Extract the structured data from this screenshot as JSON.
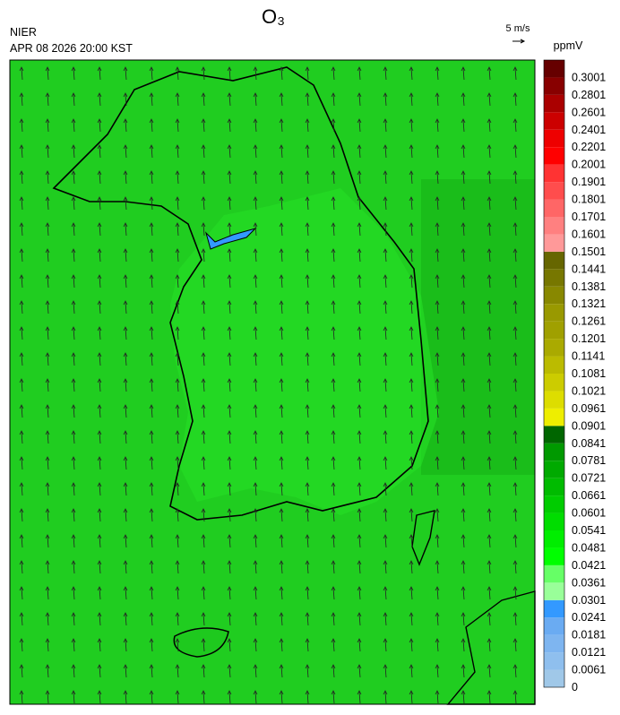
{
  "header": {
    "title": "O₃",
    "agency": "NIER",
    "datetime": "APR 08 2026 20:00 KST",
    "wind_reference": "5 m/s"
  },
  "colorbar": {
    "unit": "ppmV",
    "ticks": [
      0,
      0.0061,
      0.0121,
      0.0181,
      0.0241,
      0.0301,
      0.0361,
      0.0421,
      0.0481,
      0.0541,
      0.0601,
      0.0661,
      0.0721,
      0.0781,
      0.0841,
      0.0901,
      0.0961,
      0.1021,
      0.1081,
      0.1141,
      0.1201,
      0.1261,
      0.1321,
      0.1381,
      0.1441,
      0.1501,
      0.1601,
      0.1701,
      0.1801,
      0.1901,
      0.2001,
      0.2201,
      0.2401,
      0.2601,
      0.2801,
      0.3001
    ],
    "colors": [
      "#a0c8e8",
      "#8fbfee",
      "#7eb5f0",
      "#6aabf2",
      "#3399ff",
      "#99ff99",
      "#66ff66",
      "#00ff00",
      "#00ee00",
      "#00dd00",
      "#00cc00",
      "#00bb00",
      "#00aa00",
      "#009900",
      "#006600",
      "#eeee00",
      "#dddd00",
      "#cccc00",
      "#bbbb00",
      "#aaaa00",
      "#a0a000",
      "#999900",
      "#888800",
      "#777700",
      "#666600",
      "#ff9999",
      "#ff8080",
      "#ff6666",
      "#ff4d4d",
      "#ff3333",
      "#ff0000",
      "#ee0000",
      "#cc0000",
      "#aa0000",
      "#880000",
      "#660000"
    ]
  }
}
